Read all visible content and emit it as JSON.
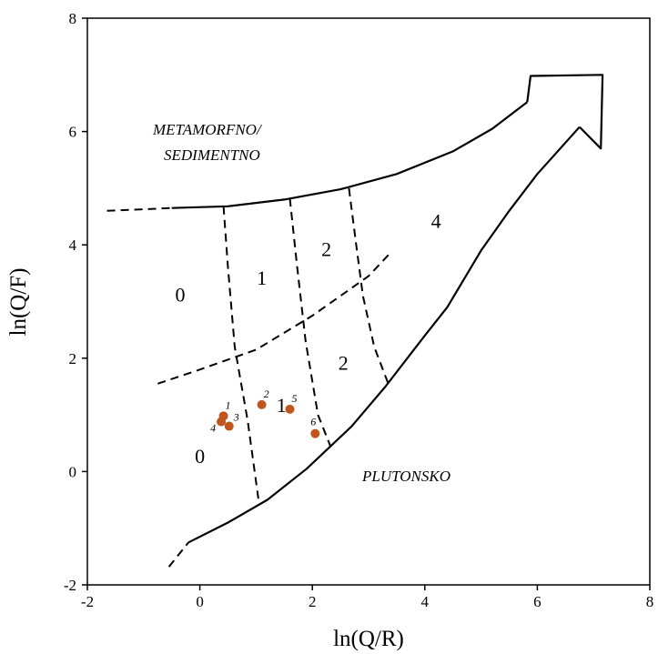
{
  "chart_data": {
    "type": "scatter",
    "xlabel": "ln(Q/R)",
    "ylabel": "ln(Q/F)",
    "xlim": [
      -2,
      8
    ],
    "ylim": [
      -2,
      8
    ],
    "xticks": [
      "-2",
      "0",
      "2",
      "4",
      "6",
      "8"
    ],
    "yticks": [
      "-2",
      "0",
      "2",
      "4",
      "6",
      "8"
    ],
    "grid": false,
    "point_color": "#c0561c",
    "points": [
      {
        "label": "1",
        "x": 0.42,
        "y": 0.98
      },
      {
        "label": "2",
        "x": 1.1,
        "y": 1.18
      },
      {
        "label": "3",
        "x": 0.52,
        "y": 0.8
      },
      {
        "label": "4",
        "x": 0.38,
        "y": 0.88
      },
      {
        "label": "5",
        "x": 1.6,
        "y": 1.1
      },
      {
        "label": "6",
        "x": 2.05,
        "y": 0.67
      }
    ],
    "field_labels": {
      "metamorphic_line1": "METAMORFNO/",
      "metamorphic_line2": "SEDIMENTNO",
      "plutonic": "PLUTONSKO"
    },
    "region_labels": [
      {
        "text": "0",
        "x": -0.35,
        "y": 3.0
      },
      {
        "text": "1",
        "x": 1.1,
        "y": 3.3
      },
      {
        "text": "2",
        "x": 2.25,
        "y": 3.8
      },
      {
        "text": "4",
        "x": 4.2,
        "y": 4.3
      },
      {
        "text": "2",
        "x": 2.55,
        "y": 1.8
      },
      {
        "text": "1",
        "x": 1.45,
        "y": 1.05
      },
      {
        "text": "0",
        "x": 0.0,
        "y": 0.15
      }
    ],
    "curves": {
      "upper_boundary": [
        [
          -0.5,
          4.65
        ],
        [
          0.5,
          4.68
        ],
        [
          1.5,
          4.8
        ],
        [
          2.5,
          4.98
        ],
        [
          3.5,
          5.25
        ],
        [
          4.5,
          5.65
        ],
        [
          5.2,
          6.05
        ],
        [
          5.82,
          6.52
        ]
      ],
      "upper_boundary_dashed": [
        [
          -1.65,
          4.6
        ],
        [
          -0.5,
          4.65
        ]
      ],
      "lower_boundary": [
        [
          -0.2,
          -1.25
        ],
        [
          0.5,
          -0.9
        ],
        [
          1.2,
          -0.5
        ],
        [
          1.9,
          0.05
        ],
        [
          2.7,
          0.8
        ],
        [
          3.3,
          1.5
        ],
        [
          4.0,
          2.4
        ],
        [
          4.4,
          2.9
        ],
        [
          5.0,
          3.9
        ],
        [
          5.5,
          4.6
        ],
        [
          6.0,
          5.25
        ],
        [
          6.75,
          6.08
        ]
      ],
      "lower_boundary_dashed": [
        [
          -0.55,
          -1.68
        ],
        [
          -0.2,
          -1.25
        ]
      ],
      "arrow_head": [
        [
          5.82,
          6.52
        ],
        [
          5.88,
          6.98
        ],
        [
          7.16,
          7.0
        ],
        [
          7.13,
          5.7
        ],
        [
          6.75,
          6.08
        ]
      ],
      "dashed_diag": [
        [
          -0.75,
          1.55
        ],
        [
          0.0,
          1.8
        ],
        [
          1.0,
          2.15
        ],
        [
          2.0,
          2.75
        ],
        [
          3.0,
          3.45
        ],
        [
          3.38,
          3.85
        ]
      ],
      "dashed_v1": [
        [
          0.42,
          4.68
        ],
        [
          0.5,
          3.6
        ],
        [
          0.62,
          2.2
        ],
        [
          0.85,
          0.9
        ],
        [
          1.05,
          -0.55
        ]
      ],
      "dashed_v2": [
        [
          1.6,
          4.82
        ],
        [
          1.72,
          3.7
        ],
        [
          1.88,
          2.3
        ],
        [
          2.1,
          1.0
        ],
        [
          2.32,
          0.45
        ]
      ],
      "dashed_v3": [
        [
          2.65,
          5.0
        ],
        [
          2.78,
          4.0
        ],
        [
          2.9,
          3.1
        ],
        [
          3.1,
          2.2
        ],
        [
          3.35,
          1.55
        ]
      ]
    }
  }
}
